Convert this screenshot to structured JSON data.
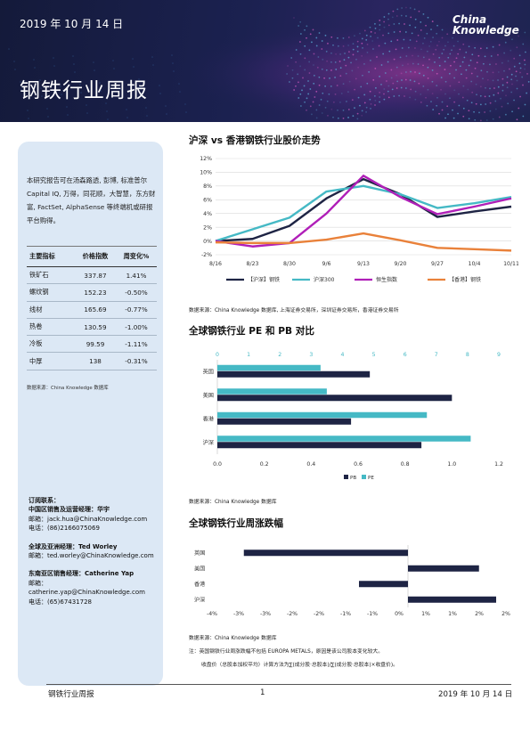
{
  "header": {
    "date": "2019 年 10 月 14 日",
    "brand_line1": "China",
    "brand_line2": "Knowledge",
    "title": "钢铁行业周报"
  },
  "sidebar": {
    "intro": "本研究报告可在汤森路透, 彭博, 标准普尔 Capital IQ, 万得，同花顺，大智慧，东方财富, FactSet, AlphaSense 等终端机或研报平台购得。",
    "table": {
      "headers": [
        "主要指标",
        "价格指数",
        "周变化%"
      ],
      "rows": [
        [
          "铁矿石",
          "337.87",
          "1.41%"
        ],
        [
          "螺纹钢",
          "152.23",
          "-0.50%"
        ],
        [
          "线材",
          "165.69",
          "-0.77%"
        ],
        [
          "热卷",
          "130.59",
          "-1.00%"
        ],
        [
          "冷板",
          "99.59",
          "-1.11%"
        ],
        [
          "中厚",
          "138",
          "-0.31%"
        ]
      ]
    },
    "table_source": "数据来源：China Knowledge 数据库",
    "contacts": {
      "heading": "订阅联系：",
      "china": {
        "title": "中国区销售及运营经理：华宇",
        "email": "邮箱：jack.hua@ChinaKnowledge.com",
        "phone": "电话：(86)2166075069"
      },
      "global": {
        "title": "全球及亚洲经理：Ted Worley",
        "email": "邮箱：ted.worley@ChinaKnowledge.com"
      },
      "sea": {
        "title": "东南亚区销售经理：Catherine Yap",
        "email": "邮箱：catherine.yap@ChinaKnowledge.com",
        "phone": "电话：(65)67431728"
      }
    }
  },
  "sections": {
    "chart1_title": "沪深 vs 香港钢铁行业股价走势",
    "chart1_source": "数据来源：China Knowledge 数据库, 上海证券交易所，深圳证券交易所，香港证券交易所",
    "chart2_title": "全球钢铁行业 PE 和 PB 对比",
    "chart2_source": "数据来源：China Knowledge 数据库",
    "chart3_title": "全球钢铁行业周涨跌幅",
    "chart3_source": "数据来源：China Knowledge 数据库",
    "footnote": "注：英国钢铁行业周涨跌幅不包括 EUROPA METALS，原因是该公司股本变化较大。",
    "formula": "收盘价（总股本加权平均）计算方法为∑(成分股·总股本)/∑(成分股·总股本)×收盘价)。"
  },
  "footer": {
    "left": "钢铁行业周报",
    "page": "1",
    "right": "2019 年 10 月 14 日"
  },
  "colors": {
    "navy": "#1e2444",
    "teal": "#45b9c5",
    "magenta": "#b01fb8",
    "orange": "#e9813a"
  },
  "chart_data": [
    {
      "type": "line",
      "x": [
        "8/16",
        "8/23",
        "8/30",
        "9/6",
        "9/13",
        "9/20",
        "9/27",
        "10/4",
        "10/11"
      ],
      "series": [
        {
          "name": "【沪深】钢铁",
          "color": "#1e2444",
          "values": [
            0,
            0.3,
            2.2,
            6.2,
            9.0,
            6.8,
            3.5,
            4.3,
            5.0
          ]
        },
        {
          "name": "沪深300",
          "color": "#45b9c5",
          "values": [
            0,
            1.7,
            3.4,
            7.2,
            8.0,
            6.8,
            4.8,
            5.5,
            6.4
          ]
        },
        {
          "name": "恒生指数",
          "color": "#b01fb8",
          "values": [
            0,
            -0.8,
            -0.3,
            4.0,
            9.5,
            6.4,
            3.9,
            5.0,
            6.2
          ]
        },
        {
          "name": "【香港】钢铁",
          "color": "#e9813a",
          "values": [
            -0.2,
            -0.3,
            -0.3,
            0.2,
            1.1,
            0.1,
            -1.0,
            -1.2,
            -1.4
          ]
        }
      ],
      "yticks": [
        "12%",
        "10%",
        "8%",
        "6%",
        "4%",
        "2%",
        "0%",
        "-2%"
      ],
      "ylim": [
        -2,
        12
      ],
      "legend": "bottom",
      "grid": true
    },
    {
      "type": "bar",
      "orientation": "horizontal",
      "categories": [
        "英国",
        "美国",
        "香港",
        "沪深"
      ],
      "series": [
        {
          "name": "PB",
          "color": "#1e2444",
          "axis": "bottom",
          "values": [
            0.65,
            1.0,
            0.57,
            0.87
          ]
        },
        {
          "name": "PE",
          "color": "#45b9c5",
          "axis": "top",
          "values": [
            3.3,
            3.5,
            6.7,
            8.1
          ]
        }
      ],
      "xticks_bottom": [
        "0.0",
        "0.2",
        "0.4",
        "0.6",
        "0.8",
        "1.0",
        "1.2"
      ],
      "xlim_bottom": [
        0,
        1.2
      ],
      "xticks_top": [
        "0",
        "1",
        "2",
        "3",
        "4",
        "5",
        "6",
        "7",
        "8",
        "9"
      ],
      "xlim_top": [
        0,
        9
      ],
      "legend": "bottom"
    },
    {
      "type": "bar",
      "orientation": "horizontal",
      "categories": [
        "英国",
        "美国",
        "香港",
        "沪深"
      ],
      "values": [
        -3.35,
        1.45,
        -1.0,
        1.8
      ],
      "color": "#1e2444",
      "xticks": [
        "-4%",
        "-3%",
        "-3%",
        "-2%",
        "-2%",
        "-1%",
        "-1%",
        "0%",
        "1%",
        "1%",
        "2%",
        "2%"
      ],
      "xlim": [
        -4,
        2
      ]
    }
  ]
}
